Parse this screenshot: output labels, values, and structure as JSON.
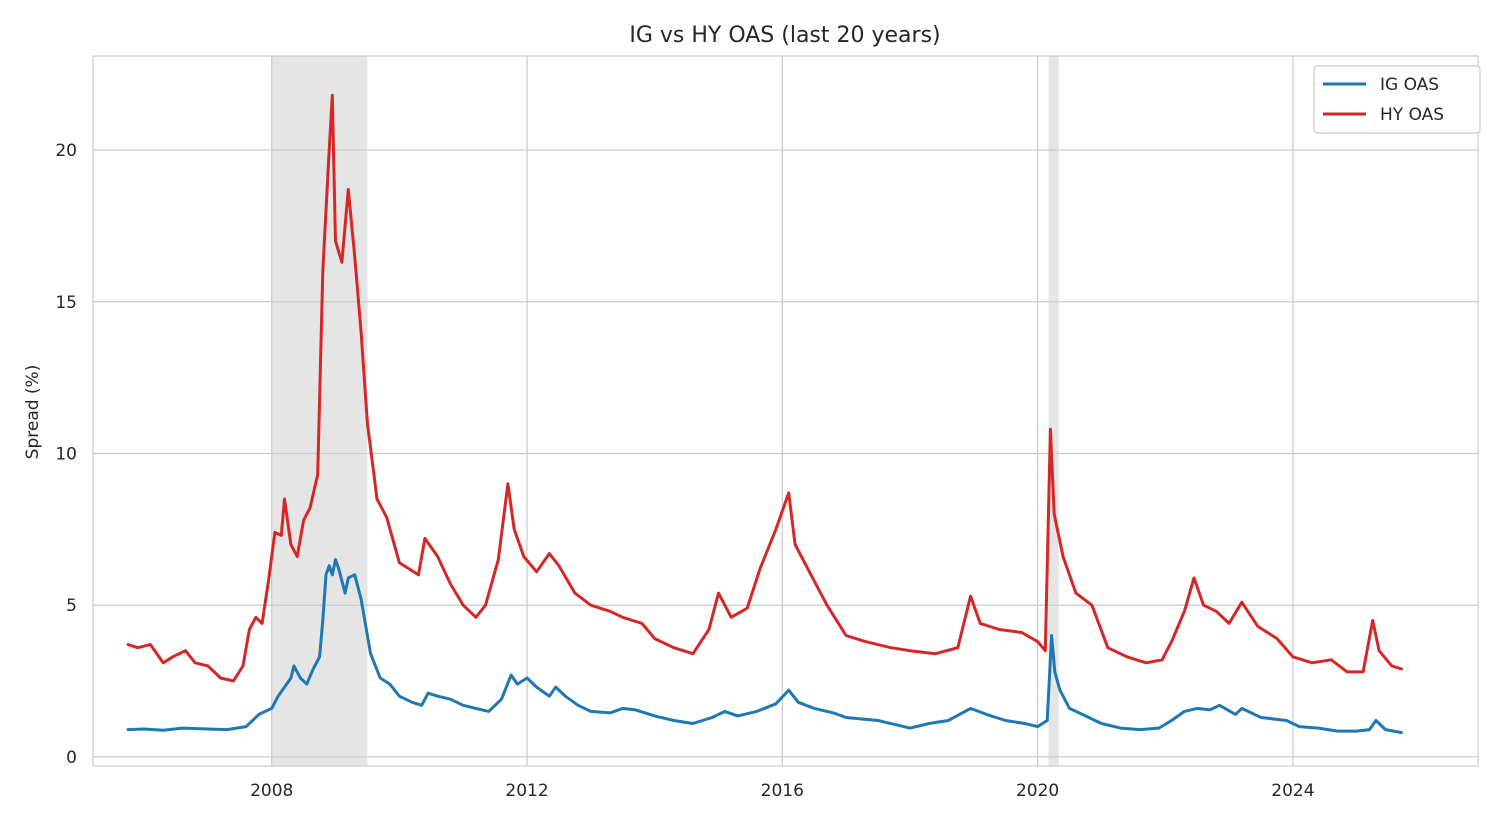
{
  "chart_data": {
    "type": "line",
    "title": "IG vs HY OAS (last 20 years)",
    "xlabel": "",
    "ylabel": "Spread (%)",
    "xlim": [
      2005.2,
      2026.9
    ],
    "ylim": [
      -0.3,
      23.1
    ],
    "grid": true,
    "legend": "top-right",
    "x_ticks": [
      {
        "value": 2008,
        "label": "2008"
      },
      {
        "value": 2012,
        "label": "2012"
      },
      {
        "value": 2016,
        "label": "2016"
      },
      {
        "value": 2020,
        "label": "2020"
      },
      {
        "value": 2024,
        "label": "2024"
      }
    ],
    "y_ticks": [
      {
        "value": 0,
        "label": "0"
      },
      {
        "value": 5,
        "label": "5"
      },
      {
        "value": 10,
        "label": "10"
      },
      {
        "value": 15,
        "label": "15"
      },
      {
        "value": 20,
        "label": "20"
      }
    ],
    "shaded_periods": [
      {
        "start": 2008.0,
        "end": 2009.5
      },
      {
        "start": 2020.17,
        "end": 2020.33
      }
    ],
    "shade_color": "#e5e5e5",
    "series": [
      {
        "name": "IG OAS",
        "color": "#1f77b4",
        "points": [
          [
            2005.75,
            0.9
          ],
          [
            2006.0,
            0.92
          ],
          [
            2006.3,
            0.88
          ],
          [
            2006.6,
            0.95
          ],
          [
            2007.0,
            0.92
          ],
          [
            2007.3,
            0.9
          ],
          [
            2007.6,
            1.0
          ],
          [
            2007.8,
            1.4
          ],
          [
            2008.0,
            1.6
          ],
          [
            2008.1,
            2.0
          ],
          [
            2008.2,
            2.3
          ],
          [
            2008.3,
            2.6
          ],
          [
            2008.35,
            3.0
          ],
          [
            2008.45,
            2.6
          ],
          [
            2008.55,
            2.4
          ],
          [
            2008.65,
            2.9
          ],
          [
            2008.75,
            3.3
          ],
          [
            2008.8,
            4.5
          ],
          [
            2008.85,
            6.0
          ],
          [
            2008.9,
            6.3
          ],
          [
            2008.95,
            6.0
          ],
          [
            2009.0,
            6.5
          ],
          [
            2009.05,
            6.2
          ],
          [
            2009.15,
            5.4
          ],
          [
            2009.2,
            5.9
          ],
          [
            2009.3,
            6.0
          ],
          [
            2009.4,
            5.2
          ],
          [
            2009.5,
            4.0
          ],
          [
            2009.55,
            3.4
          ],
          [
            2009.7,
            2.6
          ],
          [
            2009.85,
            2.4
          ],
          [
            2010.0,
            2.0
          ],
          [
            2010.2,
            1.8
          ],
          [
            2010.35,
            1.7
          ],
          [
            2010.45,
            2.1
          ],
          [
            2010.6,
            2.0
          ],
          [
            2010.8,
            1.9
          ],
          [
            2011.0,
            1.7
          ],
          [
            2011.2,
            1.6
          ],
          [
            2011.4,
            1.5
          ],
          [
            2011.6,
            1.9
          ],
          [
            2011.75,
            2.7
          ],
          [
            2011.85,
            2.4
          ],
          [
            2012.0,
            2.6
          ],
          [
            2012.15,
            2.3
          ],
          [
            2012.35,
            2.0
          ],
          [
            2012.45,
            2.3
          ],
          [
            2012.6,
            2.0
          ],
          [
            2012.8,
            1.7
          ],
          [
            2013.0,
            1.5
          ],
          [
            2013.3,
            1.45
          ],
          [
            2013.5,
            1.6
          ],
          [
            2013.7,
            1.55
          ],
          [
            2014.0,
            1.35
          ],
          [
            2014.3,
            1.2
          ],
          [
            2014.6,
            1.1
          ],
          [
            2014.9,
            1.3
          ],
          [
            2015.1,
            1.5
          ],
          [
            2015.3,
            1.35
          ],
          [
            2015.6,
            1.5
          ],
          [
            2015.9,
            1.75
          ],
          [
            2016.1,
            2.2
          ],
          [
            2016.25,
            1.8
          ],
          [
            2016.5,
            1.6
          ],
          [
            2016.8,
            1.45
          ],
          [
            2017.0,
            1.3
          ],
          [
            2017.5,
            1.2
          ],
          [
            2017.9,
            1.0
          ],
          [
            2018.0,
            0.95
          ],
          [
            2018.3,
            1.1
          ],
          [
            2018.6,
            1.2
          ],
          [
            2018.95,
            1.6
          ],
          [
            2019.2,
            1.4
          ],
          [
            2019.5,
            1.2
          ],
          [
            2019.8,
            1.1
          ],
          [
            2020.0,
            1.0
          ],
          [
            2020.15,
            1.2
          ],
          [
            2020.22,
            4.0
          ],
          [
            2020.27,
            2.8
          ],
          [
            2020.35,
            2.2
          ],
          [
            2020.5,
            1.6
          ],
          [
            2020.7,
            1.4
          ],
          [
            2021.0,
            1.1
          ],
          [
            2021.3,
            0.95
          ],
          [
            2021.6,
            0.9
          ],
          [
            2021.9,
            0.95
          ],
          [
            2022.1,
            1.2
          ],
          [
            2022.3,
            1.5
          ],
          [
            2022.5,
            1.6
          ],
          [
            2022.7,
            1.55
          ],
          [
            2022.85,
            1.7
          ],
          [
            2023.1,
            1.4
          ],
          [
            2023.2,
            1.6
          ],
          [
            2023.5,
            1.3
          ],
          [
            2023.9,
            1.2
          ],
          [
            2024.1,
            1.0
          ],
          [
            2024.4,
            0.95
          ],
          [
            2024.7,
            0.85
          ],
          [
            2025.0,
            0.85
          ],
          [
            2025.2,
            0.9
          ],
          [
            2025.3,
            1.2
          ],
          [
            2025.45,
            0.9
          ],
          [
            2025.7,
            0.8
          ]
        ]
      },
      {
        "name": "HY OAS",
        "color": "#d62728",
        "points": [
          [
            2005.75,
            3.7
          ],
          [
            2005.9,
            3.6
          ],
          [
            2006.1,
            3.7
          ],
          [
            2006.3,
            3.1
          ],
          [
            2006.45,
            3.3
          ],
          [
            2006.65,
            3.5
          ],
          [
            2006.8,
            3.1
          ],
          [
            2007.0,
            3.0
          ],
          [
            2007.2,
            2.6
          ],
          [
            2007.4,
            2.5
          ],
          [
            2007.55,
            3.0
          ],
          [
            2007.65,
            4.2
          ],
          [
            2007.75,
            4.6
          ],
          [
            2007.85,
            4.4
          ],
          [
            2007.95,
            5.8
          ],
          [
            2008.05,
            7.4
          ],
          [
            2008.15,
            7.3
          ],
          [
            2008.2,
            8.5
          ],
          [
            2008.3,
            7.0
          ],
          [
            2008.4,
            6.6
          ],
          [
            2008.5,
            7.8
          ],
          [
            2008.6,
            8.2
          ],
          [
            2008.72,
            9.3
          ],
          [
            2008.8,
            16.0
          ],
          [
            2008.9,
            20.0
          ],
          [
            2008.95,
            21.8
          ],
          [
            2009.0,
            17.0
          ],
          [
            2009.1,
            16.3
          ],
          [
            2009.2,
            18.7
          ],
          [
            2009.3,
            16.5
          ],
          [
            2009.4,
            14.0
          ],
          [
            2009.5,
            11.0
          ],
          [
            2009.65,
            8.5
          ],
          [
            2009.8,
            7.9
          ],
          [
            2010.0,
            6.4
          ],
          [
            2010.15,
            6.2
          ],
          [
            2010.3,
            6.0
          ],
          [
            2010.4,
            7.2
          ],
          [
            2010.6,
            6.6
          ],
          [
            2010.8,
            5.7
          ],
          [
            2011.0,
            5.0
          ],
          [
            2011.2,
            4.6
          ],
          [
            2011.35,
            5.0
          ],
          [
            2011.55,
            6.5
          ],
          [
            2011.7,
            9.0
          ],
          [
            2011.8,
            7.5
          ],
          [
            2011.95,
            6.6
          ],
          [
            2012.15,
            6.1
          ],
          [
            2012.35,
            6.7
          ],
          [
            2012.5,
            6.3
          ],
          [
            2012.75,
            5.4
          ],
          [
            2013.0,
            5.0
          ],
          [
            2013.3,
            4.8
          ],
          [
            2013.5,
            4.6
          ],
          [
            2013.8,
            4.4
          ],
          [
            2014.0,
            3.9
          ],
          [
            2014.3,
            3.6
          ],
          [
            2014.6,
            3.4
          ],
          [
            2014.85,
            4.2
          ],
          [
            2015.0,
            5.4
          ],
          [
            2015.2,
            4.6
          ],
          [
            2015.45,
            4.9
          ],
          [
            2015.65,
            6.2
          ],
          [
            2015.9,
            7.5
          ],
          [
            2016.1,
            8.7
          ],
          [
            2016.2,
            7.0
          ],
          [
            2016.45,
            6.0
          ],
          [
            2016.7,
            5.0
          ],
          [
            2017.0,
            4.0
          ],
          [
            2017.3,
            3.8
          ],
          [
            2017.7,
            3.6
          ],
          [
            2018.0,
            3.5
          ],
          [
            2018.4,
            3.4
          ],
          [
            2018.75,
            3.6
          ],
          [
            2018.95,
            5.3
          ],
          [
            2019.1,
            4.4
          ],
          [
            2019.4,
            4.2
          ],
          [
            2019.75,
            4.1
          ],
          [
            2020.0,
            3.8
          ],
          [
            2020.12,
            3.5
          ],
          [
            2020.2,
            10.8
          ],
          [
            2020.26,
            8.0
          ],
          [
            2020.4,
            6.6
          ],
          [
            2020.6,
            5.4
          ],
          [
            2020.85,
            5.0
          ],
          [
            2021.1,
            3.6
          ],
          [
            2021.4,
            3.3
          ],
          [
            2021.7,
            3.1
          ],
          [
            2021.95,
            3.2
          ],
          [
            2022.1,
            3.8
          ],
          [
            2022.3,
            4.8
          ],
          [
            2022.45,
            5.9
          ],
          [
            2022.6,
            5.0
          ],
          [
            2022.8,
            4.8
          ],
          [
            2023.0,
            4.4
          ],
          [
            2023.2,
            5.1
          ],
          [
            2023.45,
            4.3
          ],
          [
            2023.75,
            3.9
          ],
          [
            2024.0,
            3.3
          ],
          [
            2024.3,
            3.1
          ],
          [
            2024.6,
            3.2
          ],
          [
            2024.85,
            2.8
          ],
          [
            2025.1,
            2.8
          ],
          [
            2025.25,
            4.5
          ],
          [
            2025.35,
            3.5
          ],
          [
            2025.55,
            3.0
          ],
          [
            2025.7,
            2.9
          ]
        ]
      }
    ]
  }
}
